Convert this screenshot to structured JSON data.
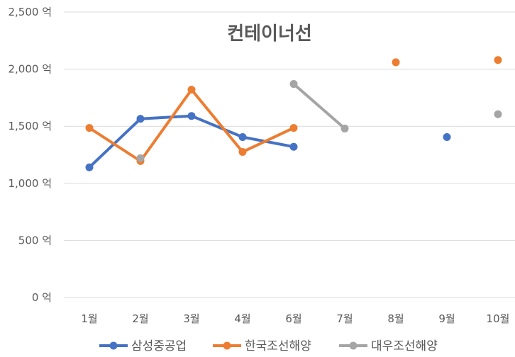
{
  "chart_data": {
    "type": "line",
    "title": "컨테이너선",
    "xlabel": "",
    "ylabel": "",
    "categories": [
      "1월",
      "2월",
      "3월",
      "4월",
      "6월",
      "7월",
      "8월",
      "9월",
      "10월"
    ],
    "y_ticks": [
      "0 억",
      "500 억",
      "1,000 억",
      "1,500 억",
      "2,000 억",
      "2,500 억"
    ],
    "ylim": [
      0,
      2500
    ],
    "grid": true,
    "legend": "bottom",
    "series": [
      {
        "name": "삼성중공업",
        "color": "#4472C4",
        "values": [
          1140,
          1565,
          1590,
          1405,
          1320,
          null,
          null,
          1405,
          null
        ]
      },
      {
        "name": "한국조선해양",
        "color": "#ED7D31",
        "values": [
          1485,
          1195,
          1820,
          1275,
          1485,
          null,
          2060,
          null,
          2080
        ]
      },
      {
        "name": "대우조선해양",
        "color": "#A5A5A5",
        "values": [
          null,
          1220,
          null,
          null,
          1870,
          1480,
          null,
          null,
          1605
        ]
      }
    ]
  }
}
